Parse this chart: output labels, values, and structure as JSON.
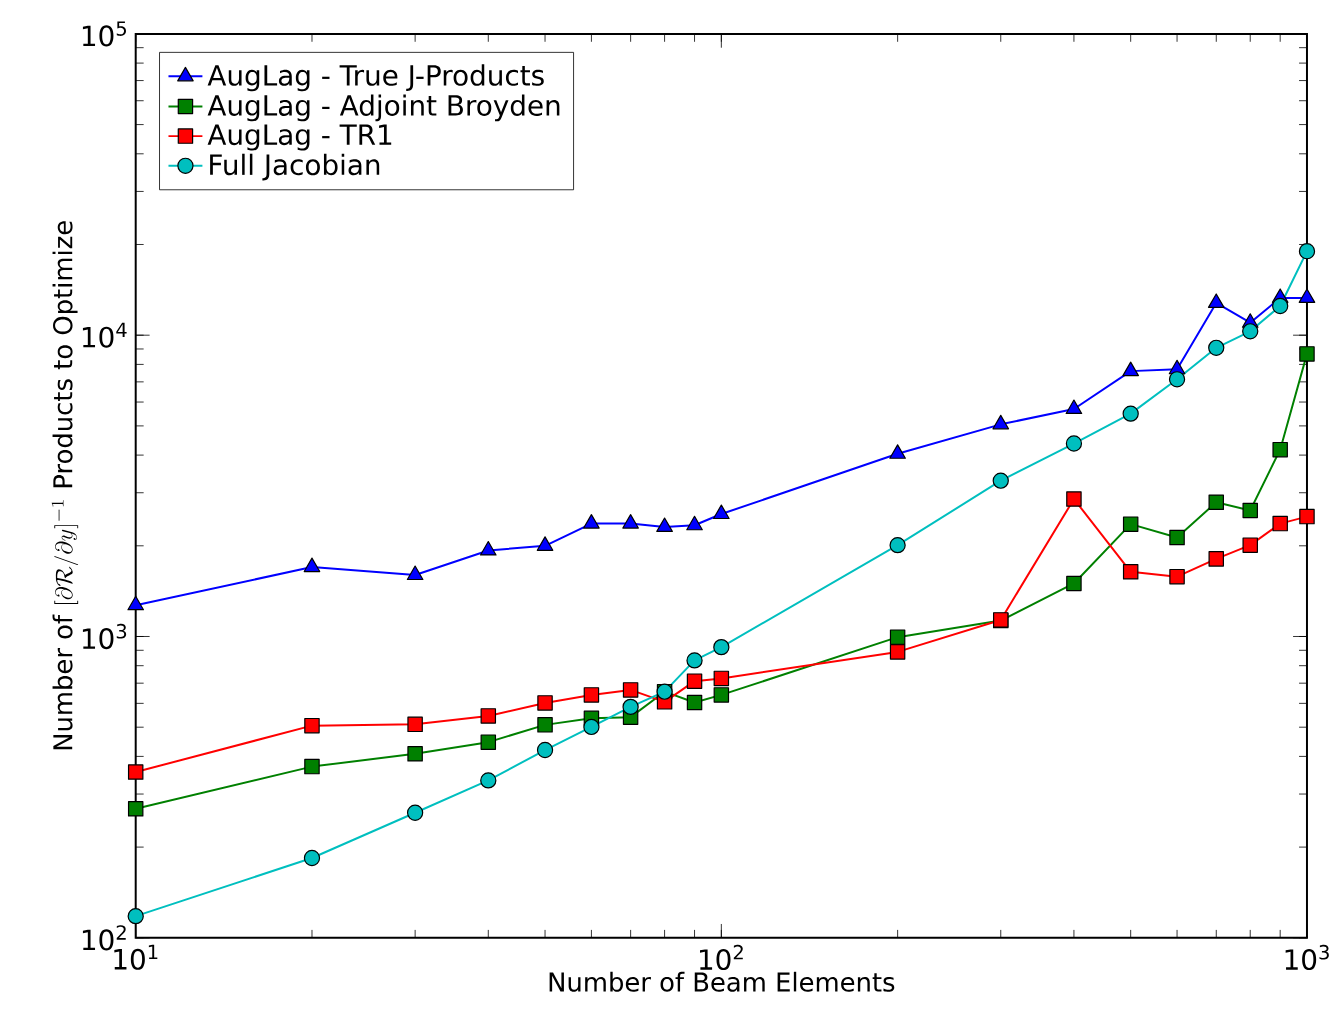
{
  "chart_data": {
    "type": "line",
    "xlabel": "Number of Beam Elements",
    "ylabel": "\\text{Number of } [\\partial\\mathcal{R}/\\partial y]^{-1}\\text{ Products to Optimize}",
    "x": [
      10,
      20,
      30,
      40,
      50,
      60,
      70,
      80,
      90,
      100,
      200,
      300,
      400,
      500,
      600,
      700,
      800,
      900,
      1000
    ],
    "series": [
      {
        "name": "AugLag - True J-Products",
        "color": "#0000ff",
        "marker": "triangle",
        "values": [
          1270,
          1700,
          1600,
          1930,
          2000,
          2370,
          2370,
          2310,
          2340,
          2550,
          4040,
          5060,
          5690,
          7600,
          7710,
          12800,
          11000,
          13300,
          13300
        ]
      },
      {
        "name": "AugLag - Adjoint Broyden",
        "color": "#008000",
        "marker": "square",
        "values": [
          268,
          370,
          408,
          446,
          509,
          535,
          540,
          656,
          604,
          640,
          995,
          1130,
          1500,
          2360,
          2130,
          2790,
          2620,
          4170,
          8670
        ]
      },
      {
        "name": "AugLag - TR1",
        "color": "#ff0000",
        "marker": "square",
        "values": [
          355,
          506,
          511,
          545,
          602,
          640,
          665,
          607,
          711,
          726,
          889,
          1135,
          2860,
          1640,
          1580,
          1810,
          2010,
          2370,
          2500
        ]
      },
      {
        "name": "Full Jacobian",
        "color": "#00bfbf",
        "marker": "circle",
        "values": [
          118,
          184,
          260,
          333,
          420,
          501,
          584,
          656,
          833,
          922,
          2010,
          3290,
          4370,
          5490,
          7140,
          9080,
          10300,
          12500,
          19000
        ]
      }
    ],
    "log": "xy",
    "xlim": [
      10,
      1000
    ],
    "ylim": [
      100,
      100000
    ],
    "xticks": [
      {
        "value": 10,
        "label": "10$^{1}$"
      },
      {
        "value": 100,
        "label": "10$^{2}$"
      },
      {
        "value": 1000,
        "label": "10$^{3}$"
      }
    ],
    "yticks": [
      {
        "value": 100,
        "label": "10$^{2}$"
      },
      {
        "value": 1000,
        "label": "10$^{3}$"
      },
      {
        "value": 10000,
        "label": "10$^{4}$"
      },
      {
        "value": 100000,
        "label": "10$^{5}$"
      }
    ],
    "grid": false,
    "legend": "top left",
    "line_style": "solid"
  }
}
